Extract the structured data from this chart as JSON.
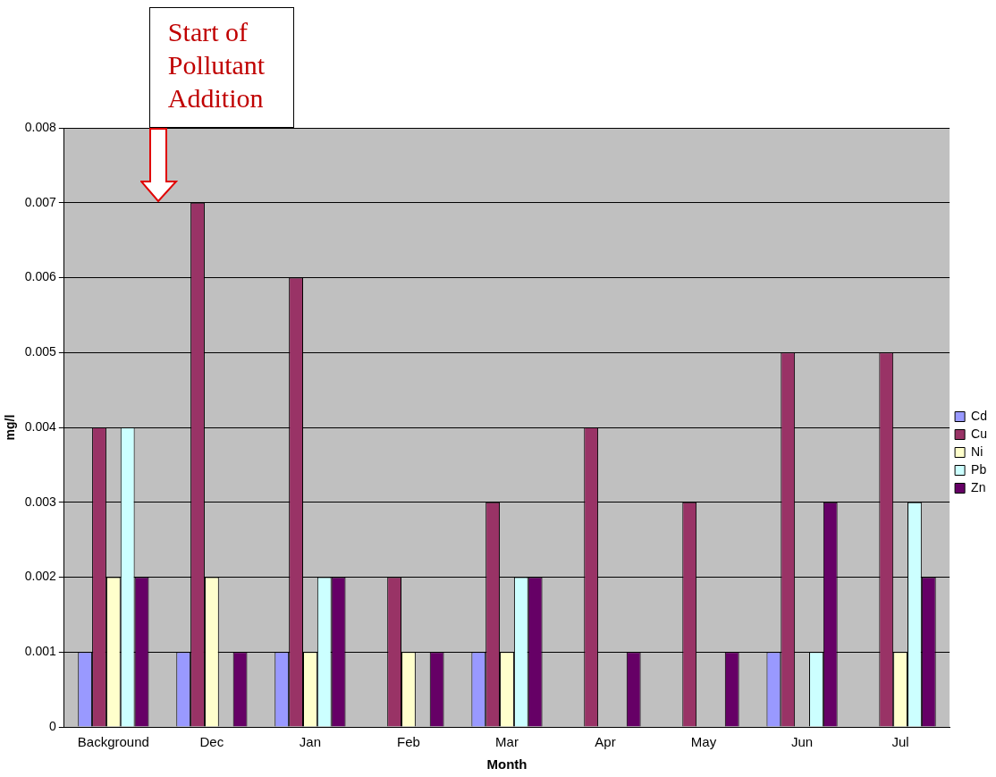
{
  "chart_data": {
    "type": "bar",
    "xlabel": "Month",
    "ylabel": "mg/l",
    "annotations": [
      "Start of Pollutant Addition"
    ],
    "categories": [
      "Background",
      "Dec",
      "Jan",
      "Feb",
      "Mar",
      "Apr",
      "May",
      "Jun",
      "Jul"
    ],
    "series": [
      {
        "name": "Cd",
        "color": "#9999ff",
        "values": [
          0.001,
          0.001,
          0.001,
          null,
          0.001,
          null,
          null,
          0.001,
          null
        ]
      },
      {
        "name": "Cu",
        "color": "#993366",
        "values": [
          0.004,
          0.007,
          0.006,
          0.002,
          0.003,
          0.004,
          0.003,
          0.005,
          0.005
        ]
      },
      {
        "name": "Ni",
        "color": "#ffffcc",
        "values": [
          0.002,
          0.002,
          0.001,
          0.001,
          0.001,
          null,
          null,
          null,
          0.001
        ]
      },
      {
        "name": "Pb",
        "color": "#ccffff",
        "values": [
          0.004,
          null,
          0.002,
          null,
          0.002,
          null,
          null,
          0.001,
          0.003
        ]
      },
      {
        "name": "Zn",
        "color": "#660066",
        "values": [
          0.002,
          0.001,
          0.002,
          0.001,
          0.002,
          0.001,
          0.001,
          0.003,
          0.002
        ]
      }
    ],
    "ylim": [
      0,
      0.008
    ],
    "yticks": [
      0,
      0.001,
      0.002,
      0.003,
      0.004,
      0.005,
      0.006,
      0.007,
      0.008
    ],
    "grid": "y",
    "legend": "right"
  }
}
